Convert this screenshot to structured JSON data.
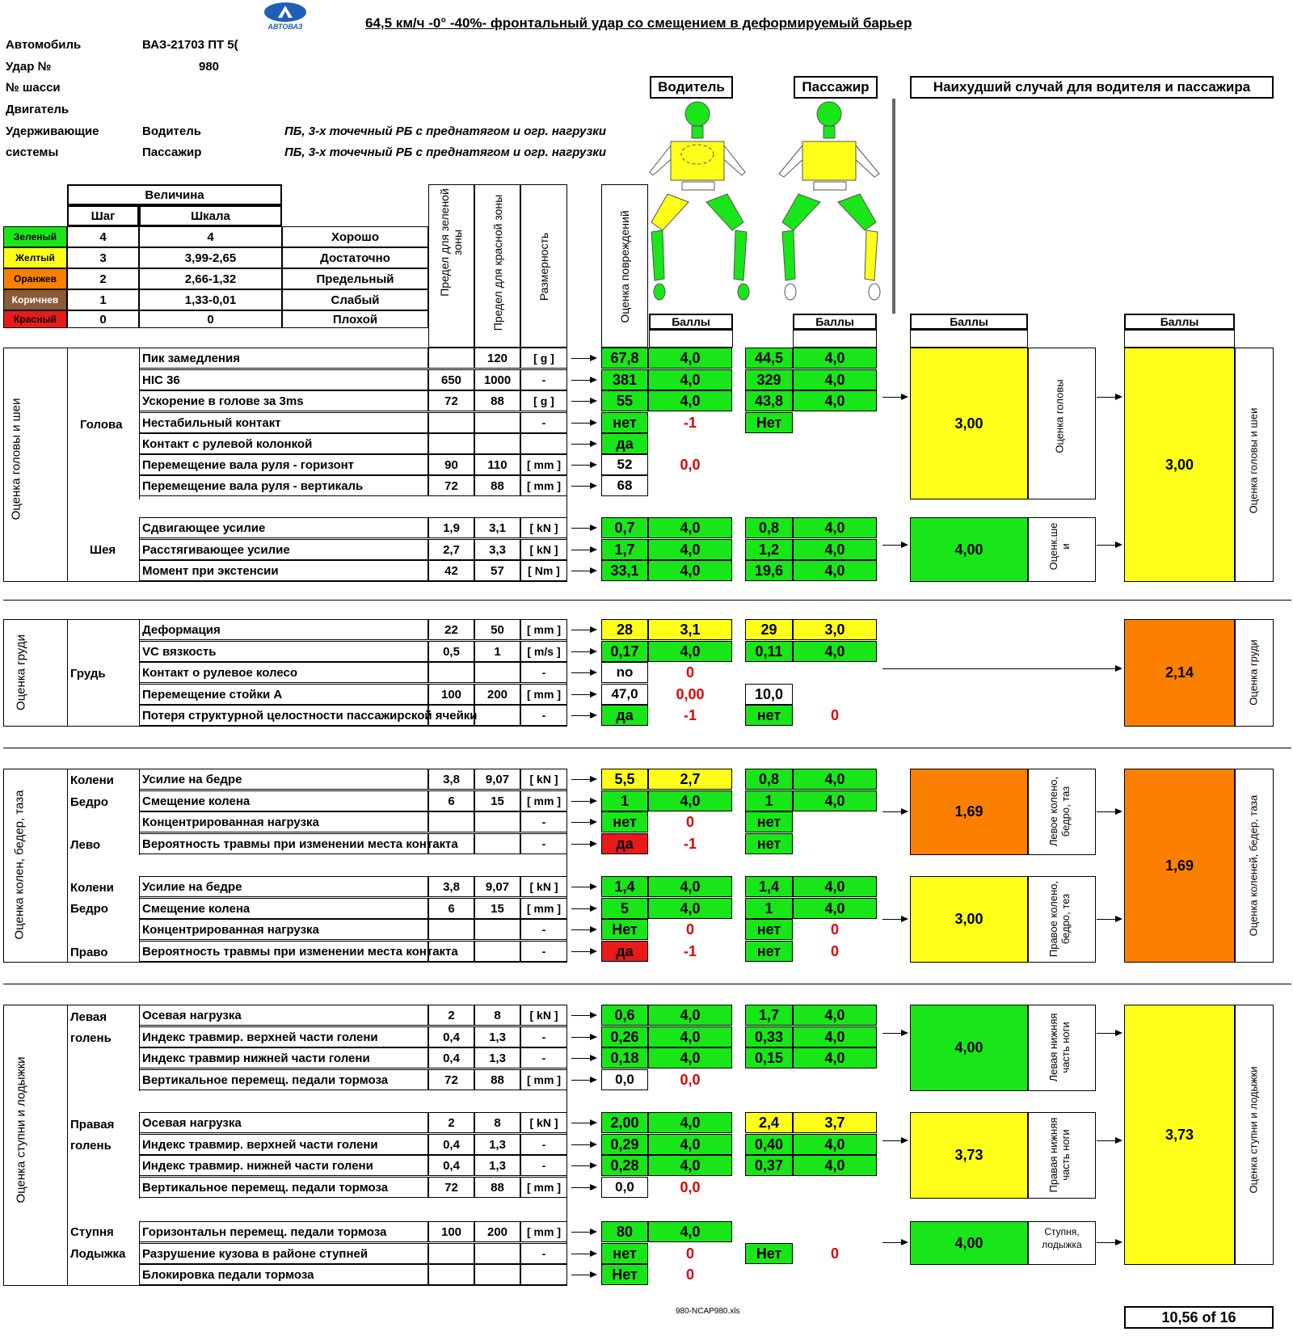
{
  "title": "64,5 км/ч -0° -40%- фронтальный удар со смещением в деформируемый барьер",
  "logo_text": "АВТОВАЗ",
  "info": {
    "car_label": "Автомобиль",
    "car_value": "ВАЗ-21703 ПТ 5(",
    "crash_label": "Удар №",
    "crash_value": "980",
    "chassis_label": "№ шасси",
    "engine_label": "Двигатель",
    "restraints_label_1": "Удерживающие",
    "restraints_label_2": "системы",
    "driver_label": "Водитель",
    "driver_value": "ПБ, 3-х точечный РБ с преднатягом и огр. нагрузки",
    "passenger_label": "Пассажир",
    "passenger_value": "ПБ, 3-х точечный РБ с преднатягом и огр. нагрузки"
  },
  "headers": {
    "driver": "Водитель",
    "passenger": "Пассажир",
    "worst": "Наихудший случай для водителя и пассажира",
    "magnitude": "Величина",
    "step": "Шаг",
    "scale": "Шкала",
    "green_limit": "Предел для зеленой зоны",
    "red_limit": "Предел для красной зоны",
    "unit": "Размерность",
    "injury_score": "Оценка повреждений",
    "points": "Баллы"
  },
  "legend": [
    {
      "color": "Зеленый",
      "step": "4",
      "scale": "4",
      "rating": "Хорошо",
      "hex": "#19e619"
    },
    {
      "color": "Желтый",
      "step": "3",
      "scale": "3,99-2,65",
      "rating": "Достаточно",
      "hex": "#ffff19"
    },
    {
      "color": "Оранжев",
      "step": "2",
      "scale": "2,66-1,32",
      "rating": "Предельный",
      "hex": "#fb8000"
    },
    {
      "color": "Коричнев",
      "step": "1",
      "scale": "1,33-0,01",
      "rating": "Слабый",
      "hex": "#8a5a3a"
    },
    {
      "color": "Красный",
      "step": "0",
      "scale": "0",
      "rating": "Плохой",
      "hex": "#e81a1a"
    }
  ],
  "sections": {
    "head_neck": "Оценка головы и шеи",
    "head": "Голова",
    "neck": "Шея",
    "chest_section": "Оценка груди",
    "chest": "Грудь",
    "knee_section": "Оценка колен, бедер, таза",
    "knee_line1": "Колени",
    "knee_line2": "Бедро",
    "left": "Лево",
    "right": "Право",
    "leg_section": "Оценка ступни и лодыжки",
    "left_shin_1": "Левая",
    "left_shin_2": "голень",
    "right_shin_1": "Правая",
    "right_shin_2": "голень",
    "foot_1": "Ступня",
    "foot_2": "Лодыжка"
  },
  "rows": {
    "r1": {
      "param": "Пик замедления",
      "green": "",
      "red": "120",
      "unit": "[ g ]",
      "dv": "67,8",
      "ds": "4,0",
      "pv": "44,5",
      "ps": "4,0"
    },
    "r2": {
      "param": "HIC 36",
      "green": "650",
      "red": "1000",
      "unit": "-",
      "dv": "381",
      "ds": "4,0",
      "pv": "329",
      "ps": "4,0"
    },
    "r3": {
      "param": "Ускорение в голове за 3ms",
      "green": "72",
      "red": "88",
      "unit": "[ g ]",
      "dv": "55",
      "ds": "4,0",
      "pv": "43,8",
      "ps": "4,0"
    },
    "r4": {
      "param": "Нестабильный контакт",
      "green": "",
      "red": "",
      "unit": "-",
      "dv": "нет",
      "ds": "-1",
      "pv": "Нет",
      "ps": ""
    },
    "r5": {
      "param": "Контакт с рулевой колонкой",
      "green": "",
      "red": "",
      "unit": "",
      "dv": "да",
      "ds": "",
      "pv": "",
      "ps": ""
    },
    "r6": {
      "param": "Перемещение вала руля - горизонт",
      "green": "90",
      "red": "110",
      "unit": "[ mm ]",
      "dv": "52",
      "ds": "0,0",
      "pv": "",
      "ps": ""
    },
    "r7": {
      "param": "Перемещение вала руля - вертикаль",
      "green": "72",
      "red": "88",
      "unit": "[ mm ]",
      "dv": "68",
      "ds": "",
      "pv": "",
      "ps": ""
    },
    "r8": {
      "param": "Сдвигающее усилие",
      "green": "1,9",
      "red": "3,1",
      "unit": "[ kN ]",
      "dv": "0,7",
      "ds": "4,0",
      "pv": "0,8",
      "ps": "4,0"
    },
    "r9": {
      "param": "Расстягивающее усилие",
      "green": "2,7",
      "red": "3,3",
      "unit": "[ kN ]",
      "dv": "1,7",
      "ds": "4,0",
      "pv": "1,2",
      "ps": "4,0"
    },
    "r10": {
      "param": "Момент при экстенсии",
      "green": "42",
      "red": "57",
      "unit": "[ Nm ]",
      "dv": "33,1",
      "ds": "4,0",
      "pv": "19,6",
      "ps": "4,0"
    },
    "r11": {
      "param": "Деформация",
      "green": "22",
      "red": "50",
      "unit": "[ mm ]",
      "dv": "28",
      "ds": "3,1",
      "pv": "29",
      "ps": "3,0"
    },
    "r12": {
      "param": "VC вязкость",
      "green": "0,5",
      "red": "1",
      "unit": "[ m/s ]",
      "dv": "0,17",
      "ds": "4,0",
      "pv": "0,11",
      "ps": "4,0"
    },
    "r13": {
      "param": "Контакт о рулевое колесо",
      "green": "",
      "red": "",
      "unit": "-",
      "dv": "no",
      "ds": "0",
      "pv": "",
      "ps": ""
    },
    "r14": {
      "param": "Перемещение стойки А",
      "green": "100",
      "red": "200",
      "unit": "[ mm ]",
      "dv": "47,0",
      "ds": "0,00",
      "pv": "10,0",
      "ps": ""
    },
    "r15": {
      "param": "Потеря структурной целостности пассажирской ячейки",
      "green": "",
      "red": "",
      "unit": "-",
      "dv": "да",
      "ds": "-1",
      "pv": "нет",
      "ps": "0"
    },
    "r16": {
      "param": "Усилие на бедре",
      "green": "3,8",
      "red": "9,07",
      "unit": "[ kN ]",
      "dv": "5,5",
      "ds": "2,7",
      "pv": "0,8",
      "ps": "4,0"
    },
    "r17": {
      "param": "Смещение колена",
      "green": "6",
      "red": "15",
      "unit": "[ mm ]",
      "dv": "1",
      "ds": "4,0",
      "pv": "1",
      "ps": "4,0"
    },
    "r18": {
      "param": "Концентрированная нагрузка",
      "green": "",
      "red": "",
      "unit": "-",
      "dv": "нет",
      "ds": "0",
      "pv": "нет",
      "ps": ""
    },
    "r19": {
      "param": "Вероятность травмы при изменении места контакта",
      "green": "",
      "red": "",
      "unit": "-",
      "dv": "да",
      "ds": "-1",
      "pv": "нет",
      "ps": ""
    },
    "r20": {
      "param": "Усилие на бедре",
      "green": "3,8",
      "red": "9,07",
      "unit": "[ kN ]",
      "dv": "1,4",
      "ds": "4,0",
      "pv": "1,4",
      "ps": "4,0"
    },
    "r21": {
      "param": "Смещение колена",
      "green": "6",
      "red": "15",
      "unit": "[ mm ]",
      "dv": "5",
      "ds": "4,0",
      "pv": "1",
      "ps": "4,0"
    },
    "r22": {
      "param": "Концентрированная нагрузка",
      "green": "",
      "red": "",
      "unit": "-",
      "dv": "Нет",
      "ds": "0",
      "pv": "нет",
      "ps": "0"
    },
    "r23": {
      "param": "Вероятность травмы при изменении места контакта",
      "green": "",
      "red": "",
      "unit": "-",
      "dv": "да",
      "ds": "-1",
      "pv": "нет",
      "ps": "0"
    },
    "r24": {
      "param": "Осевая нагрузка",
      "green": "2",
      "red": "8",
      "unit": "[ kN ]",
      "dv": "0,6",
      "ds": "4,0",
      "pv": "1,7",
      "ps": "4,0"
    },
    "r25": {
      "param": "Индекс травмир. верхней части голени",
      "green": "0,4",
      "red": "1,3",
      "unit": "-",
      "dv": "0,26",
      "ds": "4,0",
      "pv": "0,33",
      "ps": "4,0"
    },
    "r26": {
      "param": "Индекс  травмир нижней части голени",
      "green": "0,4",
      "red": "1,3",
      "unit": "-",
      "dv": "0,18",
      "ds": "4,0",
      "pv": "0,15",
      "ps": "4,0"
    },
    "r27": {
      "param": "Вертикальное перемещ. педали тормоза",
      "green": "72",
      "red": "88",
      "unit": "[ mm ]",
      "dv": "0,0",
      "ds": "0,0",
      "pv": "",
      "ps": ""
    },
    "r28": {
      "param": "Осевая нагрузка",
      "green": "2",
      "red": "8",
      "unit": "[ kN ]",
      "dv": "2,00",
      "ds": "4,0",
      "pv": "2,4",
      "ps": "3,7"
    },
    "r29": {
      "param": "Индекс травмир. верхней части голени",
      "green": "0,4",
      "red": "1,3",
      "unit": "-",
      "dv": "0,29",
      "ds": "4,0",
      "pv": "0,40",
      "ps": "4,0"
    },
    "r30": {
      "param": "Индекс травмир. нижней части голени",
      "green": "0,4",
      "red": "1,3",
      "unit": "-",
      "dv": "0,28",
      "ds": "4,0",
      "pv": "0,37",
      "ps": "4,0"
    },
    "r31": {
      "param": "Вертикальное перемещ. педали тормоза",
      "green": "72",
      "red": "88",
      "unit": "[ mm ]",
      "dv": "0,0",
      "ds": "0,0",
      "pv": "",
      "ps": ""
    },
    "r32": {
      "param": "Горизонтальн перемещ. педали тормоза",
      "green": "100",
      "red": "200",
      "unit": "[ mm ]",
      "dv": "80",
      "ds": "4,0",
      "pv": "",
      "ps": ""
    },
    "r33": {
      "param": "Разрушение кузова в районе ступней",
      "green": "",
      "red": "",
      "unit": "-",
      "dv": "нет",
      "ds": "0",
      "pv": "Нет",
      "ps": "0"
    },
    "r34": {
      "param": "Блокировка педали тормоза",
      "green": "",
      "red": "",
      "unit": "",
      "dv": "Нет",
      "ds": "0",
      "pv": "",
      "ps": ""
    }
  },
  "summary": {
    "head_score": "3,00",
    "head_label": "Оценка головы",
    "neck_score": "4,00",
    "neck_label_1": "Оценк.ше",
    "neck_label_2": "и",
    "head_neck_worst": "3,00",
    "head_neck_worst_label": "Оценка головы и шеи",
    "chest_worst": "2,14",
    "chest_worst_label": "Оценка груди",
    "left_knee_score": "1,69",
    "left_knee_label_1": "Левое колено,",
    "left_knee_label_2": "бедро, таз",
    "right_knee_score": "3,00",
    "right_knee_label_1": "Правое колено,",
    "right_knee_label_2": "бедро, тез",
    "knee_worst": "1,69",
    "knee_worst_label": "Оценка коленей, бедер, таза",
    "left_leg_score": "4,00",
    "left_leg_label_1": "Левая нижняя",
    "left_leg_label_2": "часть ноги",
    "right_leg_score": "3,73",
    "right_leg_label_1": "Правая нижняя",
    "right_leg_label_2": "часть ноги",
    "foot_score": "4,00",
    "foot_label_1": "Ступня,",
    "foot_label_2": "лодыжка",
    "leg_worst": "3,73",
    "leg_worst_label": "Оценка ступни и лодыжки"
  },
  "footer": {
    "file": "980-NCAP980.xls",
    "total": "10,56 of 16"
  },
  "figure_colors": {
    "head": "green",
    "driver_chest": "yellow",
    "driver_thighs": "yellow",
    "passenger_chest": "yellow",
    "passenger_right_lower_leg": "yellow"
  }
}
